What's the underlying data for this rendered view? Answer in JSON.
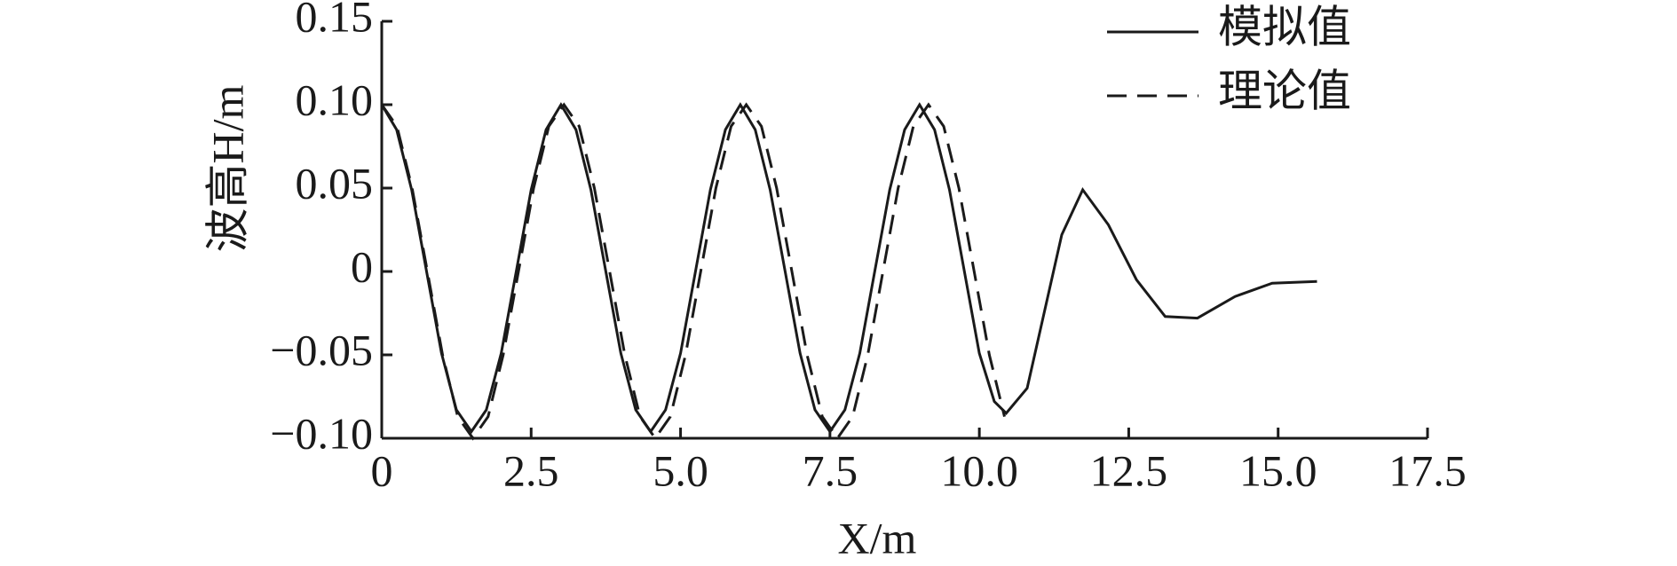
{
  "chart_data": {
    "type": "line",
    "xlabel": "X/m",
    "ylabel": "波高H/m",
    "xlim": [
      0,
      17.5
    ],
    "xticks": [
      0,
      2.5,
      {
        "value": 5,
        "label": "5.0"
      },
      7.5,
      {
        "value": 10,
        "label": "10.0"
      },
      12.5,
      {
        "value": 15,
        "label": "15.0"
      },
      17.5
    ],
    "ylim": [
      -0.1,
      0.15
    ],
    "yticks": [
      {
        "value": -0.1,
        "label": "−0.10"
      },
      {
        "value": -0.05,
        "label": "−0.05"
      },
      0,
      0.05,
      {
        "value": 0.1,
        "label": "0.10"
      },
      0.15
    ],
    "grid": false,
    "legend": "upper right",
    "series": [
      {
        "name": "模拟值",
        "color": "#1a1a1a",
        "linestyle": "solid",
        "x": [
          0,
          0.25,
          0.5,
          0.75,
          1,
          1.25,
          1.5,
          1.75,
          2,
          2.25,
          2.5,
          2.75,
          3,
          3.25,
          3.5,
          3.75,
          4,
          4.25,
          4.5,
          4.75,
          5,
          5.25,
          5.5,
          5.75,
          6,
          6.25,
          6.5,
          6.75,
          7,
          7.25,
          7.5,
          7.75,
          8,
          8.25,
          8.5,
          8.75,
          9,
          9.25,
          9.5,
          9.75,
          10,
          10.25,
          10.45,
          10.8,
          11.38,
          11.73,
          12.16,
          12.63,
          13.11,
          13.65,
          14.28,
          14.9,
          15.65
        ],
        "values": [
          0.1,
          0.085,
          0.049,
          0,
          -0.049,
          -0.083,
          -0.096,
          -0.083,
          -0.049,
          0,
          0.049,
          0.085,
          0.1,
          0.085,
          0.049,
          0,
          -0.049,
          -0.083,
          -0.096,
          -0.083,
          -0.049,
          0,
          0.049,
          0.085,
          0.1,
          0.085,
          0.049,
          0,
          -0.049,
          -0.083,
          -0.096,
          -0.083,
          -0.049,
          0,
          0.049,
          0.085,
          0.1,
          0.085,
          0.049,
          0,
          -0.049,
          -0.078,
          -0.085,
          -0.07,
          0.022,
          0.049,
          0.028,
          -0.005,
          -0.027,
          -0.028,
          -0.015,
          -0.007,
          -0.006
        ]
      },
      {
        "name": "理论值",
        "color": "#1a1a1a",
        "linestyle": "dashed",
        "x": [
          0,
          0.254,
          0.508,
          0.763,
          1.017,
          1.271,
          1.525,
          1.779,
          2.033,
          2.288,
          2.542,
          2.796,
          3.05,
          3.304,
          3.558,
          3.813,
          4.067,
          4.321,
          4.575,
          4.829,
          5.083,
          5.338,
          5.592,
          5.846,
          6.1,
          6.354,
          6.608,
          6.863,
          7.117,
          7.371,
          7.625,
          7.879,
          8.133,
          8.388,
          8.642,
          8.896,
          9.15,
          9.404,
          9.658,
          9.913,
          10.167,
          10.421
        ],
        "values": [
          0.1,
          0.087,
          0.05,
          0,
          -0.05,
          -0.087,
          -0.1,
          -0.087,
          -0.05,
          0,
          0.05,
          0.087,
          0.1,
          0.087,
          0.05,
          0,
          -0.05,
          -0.087,
          -0.1,
          -0.087,
          -0.05,
          0,
          0.05,
          0.087,
          0.1,
          0.087,
          0.05,
          0,
          -0.05,
          -0.087,
          -0.1,
          -0.087,
          -0.05,
          0,
          0.05,
          0.087,
          0.1,
          0.087,
          0.05,
          0,
          -0.05,
          -0.087
        ]
      }
    ]
  }
}
